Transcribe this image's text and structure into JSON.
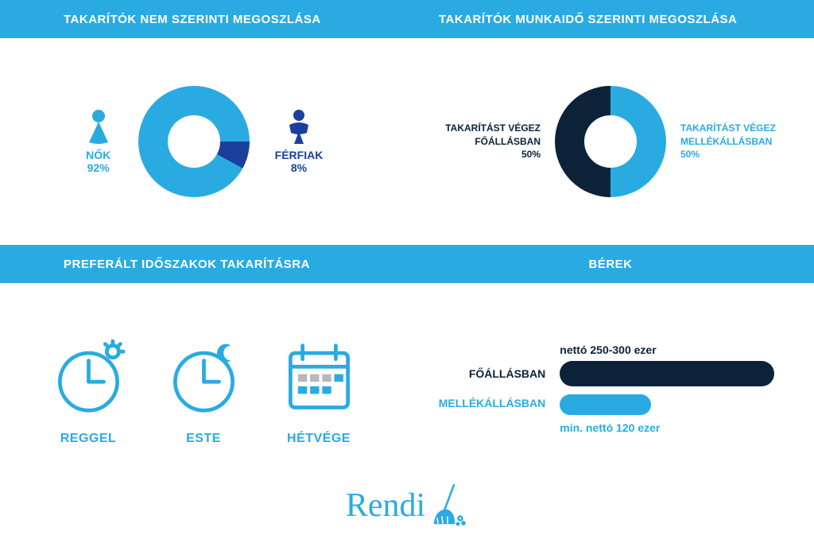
{
  "colors": {
    "primary": "#29abe2",
    "dark": "#0b2239",
    "male": "#1b3f9c",
    "white": "#ffffff"
  },
  "headers": {
    "gender_title": "TAKARÍTÓK NEM SZERINTI MEGOSZLÁSA",
    "worktype_title": "TAKARÍTÓK MUNKAIDŐ SZERINTI MEGOSZLÁSA",
    "periods_title": "PREFERÁLT IDŐSZAKOK TAKARÍTÁSRA",
    "wages_title": "BÉREK"
  },
  "gender_chart": {
    "type": "donut",
    "female": {
      "label": "NŐK",
      "pct": "92%",
      "value": 92,
      "color": "#29abe2"
    },
    "male": {
      "label": "FÉRFIAK",
      "pct": "8%",
      "value": 8,
      "color": "#1b3f9c"
    },
    "outer_radius": 70,
    "inner_radius": 33
  },
  "worktype_chart": {
    "type": "donut",
    "fulltime": {
      "label": "TAKARÍTÁST VÉGEZ FŐÁLLÁSBAN",
      "pct": "50%",
      "value": 50,
      "color": "#0b2239"
    },
    "parttime": {
      "label": "TAKARÍTÁST VÉGEZ MELLÉKÁLLÁSBAN",
      "pct": "50%",
      "value": 50,
      "color": "#29abe2"
    },
    "outer_radius": 70,
    "inner_radius": 33
  },
  "periods": {
    "morning": "REGGEL",
    "evening": "ESTE",
    "weekend": "HÉTVÉGE"
  },
  "wages": {
    "full_label": "FŐÁLLÁSBAN",
    "part_label": "MELLÉKÁLLÁSBAN",
    "full_caption": "nettó 250-300 ezer",
    "part_caption": "min. nettó 120 ezer",
    "full_bar_width": 270,
    "part_bar_width": 115,
    "full_color": "#0b2239",
    "part_color": "#29abe2"
  },
  "logo": {
    "text": "Rendi"
  }
}
